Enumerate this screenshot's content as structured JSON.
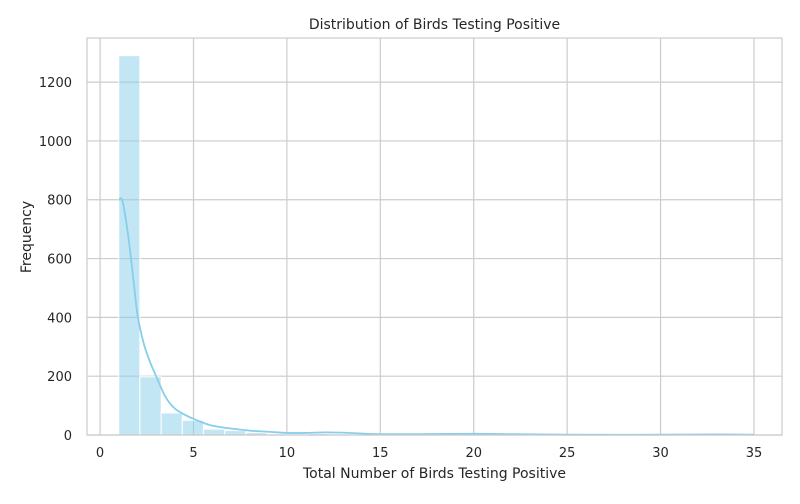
{
  "chart_data": {
    "type": "bar",
    "title": "Distribution of Birds Testing Positive",
    "xlabel": "Total Number of Birds Testing Positive",
    "ylabel": "Frequency",
    "xlim": [
      -0.7,
      36.5
    ],
    "ylim": [
      0,
      1350
    ],
    "xticks": [
      0,
      5,
      10,
      15,
      20,
      25,
      30,
      35
    ],
    "yticks": [
      0,
      200,
      400,
      600,
      800,
      1000,
      1200
    ],
    "grid": true,
    "bins": [
      {
        "x0": 1.0,
        "x1": 2.13,
        "value": 1290
      },
      {
        "x0": 2.13,
        "x1": 3.27,
        "value": 198
      },
      {
        "x0": 3.27,
        "x1": 4.4,
        "value": 75
      },
      {
        "x0": 4.4,
        "x1": 5.53,
        "value": 50
      },
      {
        "x0": 5.53,
        "x1": 6.67,
        "value": 20
      },
      {
        "x0": 6.67,
        "x1": 7.8,
        "value": 15
      },
      {
        "x0": 7.8,
        "x1": 8.93,
        "value": 8
      },
      {
        "x0": 8.93,
        "x1": 10.07,
        "value": 4
      },
      {
        "x0": 10.07,
        "x1": 11.2,
        "value": 3
      },
      {
        "x0": 11.2,
        "x1": 12.33,
        "value": 5
      },
      {
        "x0": 12.33,
        "x1": 13.47,
        "value": 4
      },
      {
        "x0": 13.47,
        "x1": 14.6,
        "value": 2
      },
      {
        "x0": 14.6,
        "x1": 15.73,
        "value": 1
      },
      {
        "x0": 15.73,
        "x1": 16.87,
        "value": 1
      },
      {
        "x0": 16.87,
        "x1": 18.0,
        "value": 1
      },
      {
        "x0": 18.0,
        "x1": 19.13,
        "value": 2
      },
      {
        "x0": 19.13,
        "x1": 20.27,
        "value": 2
      },
      {
        "x0": 20.27,
        "x1": 21.4,
        "value": 2
      },
      {
        "x0": 21.4,
        "x1": 22.53,
        "value": 1
      },
      {
        "x0": 22.53,
        "x1": 23.67,
        "value": 1
      },
      {
        "x0": 30.47,
        "x1": 31.6,
        "value": 1
      },
      {
        "x0": 31.6,
        "x1": 32.73,
        "value": 1
      },
      {
        "x0": 33.87,
        "x1": 35.0,
        "value": 1
      }
    ],
    "kde": {
      "x": [
        1.0,
        1.2,
        1.5,
        1.8,
        2.0,
        2.3,
        2.6,
        3.0,
        3.5,
        4.0,
        4.5,
        5.0,
        5.5,
        6.0,
        7.0,
        8.0,
        9.0,
        10.0,
        11.0,
        12.0,
        13.0,
        14.0,
        15.0,
        17.0,
        20.0,
        22.0,
        25.0,
        30.0,
        33.0,
        35.0
      ],
      "y": [
        800,
        795,
        680,
        520,
        410,
        320,
        260,
        200,
        130,
        90,
        70,
        55,
        42,
        32,
        22,
        15,
        11,
        7,
        7,
        9,
        8,
        5,
        3,
        3,
        4,
        3,
        1,
        1,
        2,
        1
      ]
    },
    "colors": {
      "bar_fill": "#87ceeb",
      "bar_edge": "#ffffff",
      "kde_line": "#87ceeb",
      "grid": "#cccccc",
      "axes_edge": "#cccccc"
    }
  }
}
